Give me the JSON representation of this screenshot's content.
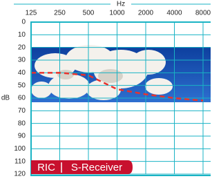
{
  "chart_data": {
    "type": "line",
    "x_label": "Hz",
    "y_label": "dB",
    "x": [
      125,
      250,
      500,
      1000,
      2000,
      4000,
      8000
    ],
    "xscale": "log",
    "xlim": [
      125,
      8000
    ],
    "xticks": [
      125,
      250,
      500,
      1000,
      2000,
      4000,
      8000
    ],
    "ylim": [
      0,
      120
    ],
    "y_inverted": true,
    "yticks": [
      0,
      10,
      20,
      30,
      40,
      50,
      60,
      70,
      80,
      90,
      100,
      110,
      120
    ],
    "grid": true,
    "series": [
      {
        "color": "#e8322c",
        "line_style": "dashed",
        "values": [
          40,
          40,
          42,
          53,
          57,
          60,
          62
        ]
      }
    ],
    "annotations": [
      "RIC",
      "S-Receiver"
    ]
  }
}
